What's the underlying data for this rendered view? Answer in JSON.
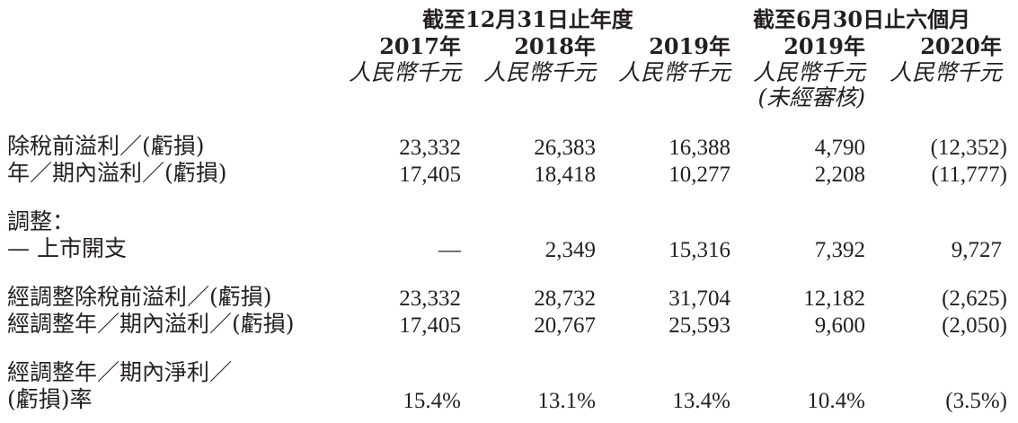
{
  "header": {
    "group1_title": "截至12月31日止年度",
    "group2_title": "截至6月30日止六個月",
    "years": [
      "2017年",
      "2018年",
      "2019年",
      "2019年",
      "2020年"
    ],
    "unit": "人民幣千元",
    "unaudited_note": "(未經審核)"
  },
  "rows": [
    {
      "label": "除稅前溢利／(虧損)",
      "values": [
        "23,332",
        "26,383",
        "16,388",
        "4,790",
        "(12,352)"
      ]
    },
    {
      "label": "年／期內溢利／(虧損)",
      "values": [
        "17,405",
        "18,418",
        "10,277",
        "2,208",
        "(11,777)"
      ]
    },
    {
      "label": "調整："
    },
    {
      "label": "— 上市開支",
      "values": [
        "—",
        "2,349",
        "15,316",
        "7,392",
        "9,727"
      ]
    },
    {
      "label": "經調整除稅前溢利／(虧損)",
      "values": [
        "23,332",
        "28,732",
        "31,704",
        "12,182",
        "(2,625)"
      ]
    },
    {
      "label": "經調整年／期內溢利／(虧損)",
      "values": [
        "17,405",
        "20,767",
        "25,593",
        "9,600",
        "(2,050)"
      ]
    },
    {
      "label_lines": [
        "經調整年／期內淨利／",
        "(虧損)率"
      ],
      "values": [
        "15.4%",
        "13.1%",
        "13.4%",
        "10.4%",
        "(3.5%)"
      ]
    }
  ]
}
